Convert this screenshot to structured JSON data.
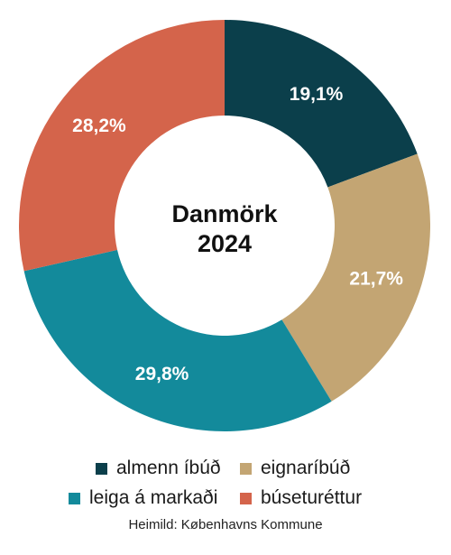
{
  "chart_data": {
    "type": "pie",
    "subtype": "donut",
    "center_title": [
      "Danmörk",
      "2024"
    ],
    "slices": [
      {
        "label": "almenn íbúð",
        "value": 19.1,
        "display": "19,1%",
        "color": "#0b3f4b"
      },
      {
        "label": "eignaríbúð",
        "value": 21.7,
        "display": "21,7%",
        "color": "#c3a573"
      },
      {
        "label": "leiga á markaði",
        "value": 29.8,
        "display": "29,8%",
        "color": "#138a9b"
      },
      {
        "label": "búseturéttur",
        "value": 28.2,
        "display": "28,2%",
        "color": "#d4644b"
      }
    ],
    "legend_position": "bottom"
  },
  "source": "Heimild: Københavns Kommune"
}
